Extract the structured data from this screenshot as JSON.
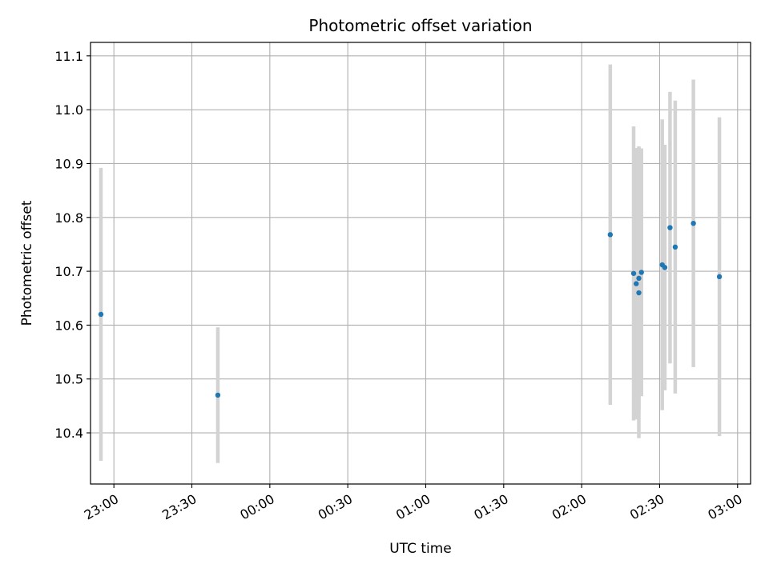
{
  "chart_data": {
    "type": "scatter",
    "title": "Photometric offset variation",
    "xlabel": "UTC time",
    "ylabel": "Photometric offset",
    "grid": true,
    "x_axis": {
      "kind": "time",
      "range": [
        "22:51",
        "03:05"
      ],
      "ticks": [
        "23:00",
        "23:30",
        "00:00",
        "00:30",
        "01:00",
        "01:30",
        "02:00",
        "02:30",
        "03:00"
      ]
    },
    "y_axis": {
      "range": [
        10.305,
        11.125
      ],
      "ticks": [
        "10.4",
        "10.5",
        "10.6",
        "10.7",
        "10.8",
        "10.9",
        "11.0",
        "11.1"
      ]
    },
    "colors": {
      "point": "#1f77b4",
      "errorbar": "#d3d3d3",
      "grid": "#b0b0b0"
    },
    "points": [
      {
        "x": "22:55",
        "y": 10.62,
        "err": 0.272
      },
      {
        "x": "23:40",
        "y": 10.47,
        "err": 0.126
      },
      {
        "x": "02:11",
        "y": 10.768,
        "err": 0.316
      },
      {
        "x": "02:20",
        "y": 10.696,
        "err": 0.273
      },
      {
        "x": "02:21",
        "y": 10.677,
        "err": 0.252
      },
      {
        "x": "02:22",
        "y": 10.66,
        "err": 0.27
      },
      {
        "x": "02:22",
        "y": 10.687,
        "err": 0.245
      },
      {
        "x": "02:23",
        "y": 10.698,
        "err": 0.23
      },
      {
        "x": "02:31",
        "y": 10.712,
        "err": 0.27
      },
      {
        "x": "02:32",
        "y": 10.707,
        "err": 0.228
      },
      {
        "x": "02:34",
        "y": 10.781,
        "err": 0.252
      },
      {
        "x": "02:36",
        "y": 10.745,
        "err": 0.272
      },
      {
        "x": "02:43",
        "y": 10.789,
        "err": 0.267
      },
      {
        "x": "02:53",
        "y": 10.69,
        "err": 0.296
      }
    ]
  }
}
